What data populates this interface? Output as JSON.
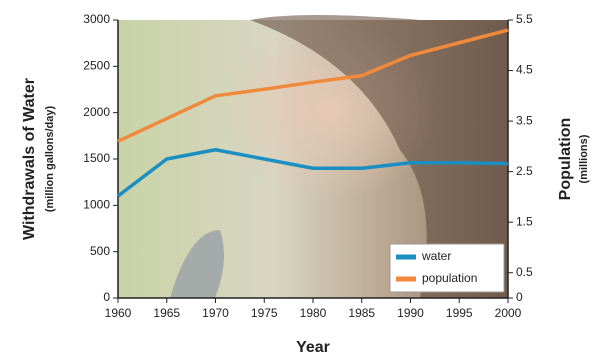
{
  "chart_data": {
    "type": "line",
    "x": [
      1960,
      1965,
      1970,
      1975,
      1980,
      1985,
      1990,
      1995,
      2000
    ],
    "series": [
      {
        "name": "water",
        "color": "#1b8fc2",
        "values": [
          1100,
          1500,
          1600,
          1500,
          1400,
          1400,
          1460,
          1460,
          1450
        ]
      },
      {
        "name": "population",
        "color": "#ef8a3c",
        "axis": "y2",
        "values": [
          3.1,
          3.55,
          4.0,
          4.13,
          4.27,
          4.4,
          4.8,
          5.05,
          5.3
        ]
      }
    ],
    "xlabel": "Year",
    "ylabel": "Withdrawals of Water",
    "ylabel_sub": "(million gallons/day)",
    "y2label": "Population",
    "y2label_sub": "(millions)",
    "xlim": [
      1960,
      2000
    ],
    "xticks": [
      1960,
      1965,
      1970,
      1975,
      1980,
      1985,
      1990,
      1995,
      2000
    ],
    "ylim": [
      0,
      3000
    ],
    "yticks": [
      0,
      500,
      1000,
      1500,
      2000,
      2500,
      3000
    ],
    "y2lim": [
      0,
      5.5
    ],
    "y2ticks": [
      0,
      0.5,
      1.5,
      2.5,
      3.5,
      4.5,
      5.5
    ],
    "legend": "lower right"
  }
}
